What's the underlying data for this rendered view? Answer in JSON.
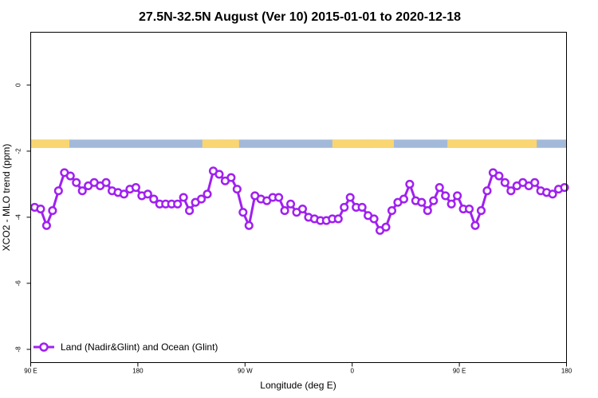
{
  "chart_data": {
    "type": "line",
    "title": "27.5N-32.5N August (Ver 10)   2015-01-01 to 2020-12-18",
    "xlabel": "Longitude (deg E)",
    "ylabel": "XCO2 - MLO trend (ppm)",
    "xlim": [
      -90,
      180
    ],
    "ylim": [
      -8.4,
      1.6
    ],
    "x_ticks": [
      {
        "value": -90,
        "label": "90 E"
      },
      {
        "value": -36,
        "label": "180"
      },
      {
        "value": 18,
        "label": "90 W"
      },
      {
        "value": 72,
        "label": "0"
      },
      {
        "value": 126,
        "label": "90 E"
      },
      {
        "value": 180,
        "label": "180"
      }
    ],
    "y_ticks": [
      0,
      -2,
      -4,
      -6,
      -8
    ],
    "grid": false,
    "legend": {
      "placement": "bottom-left",
      "entries": [
        "Land (Nadir&Glint) and Ocean (Glint)"
      ]
    },
    "colors": {
      "series": "#a020f0",
      "land": "#f9d671",
      "ocean": "#a3b9d9"
    },
    "land_ocean_strip": {
      "y_range": [
        -1.9,
        -1.65
      ],
      "land_segments": [
        [
          -90,
          -70.5
        ],
        [
          -3.5,
          15
        ],
        [
          4,
          8
        ],
        [
          62,
          93
        ],
        [
          79,
          81
        ],
        [
          120,
          165
        ]
      ]
    },
    "series": [
      {
        "name": "Land (Nadir&Glint) and Ocean (Glint)",
        "x": [
          -88,
          -85,
          -82,
          -79,
          -76,
          -73,
          -70,
          -67,
          -64,
          -61,
          -58,
          -55,
          -52,
          -49,
          -46,
          -43,
          -40,
          -37,
          -34,
          -31,
          -28,
          -25,
          -22,
          -19,
          -16,
          -13,
          -10,
          -7,
          -4,
          -1,
          2,
          5,
          8,
          11,
          14,
          17,
          20,
          23,
          26,
          29,
          32,
          35,
          38,
          41,
          44,
          47,
          50,
          53,
          56,
          59,
          62,
          65,
          68,
          71,
          74,
          77,
          80,
          83,
          86,
          89,
          92,
          95,
          98,
          101,
          104,
          107,
          110,
          113,
          116,
          119,
          122,
          125,
          128,
          131,
          134,
          137,
          140,
          143,
          146,
          149,
          152,
          155,
          158,
          161,
          164,
          167,
          170,
          173,
          176,
          179
        ],
        "values": [
          -3.7,
          -3.75,
          -4.25,
          -3.8,
          -3.2,
          -2.65,
          -2.75,
          -2.95,
          -3.2,
          -3.05,
          -2.95,
          -3.05,
          -2.95,
          -3.2,
          -3.25,
          -3.3,
          -3.15,
          -3.1,
          -3.35,
          -3.3,
          -3.45,
          -3.6,
          -3.6,
          -3.6,
          -3.6,
          -3.4,
          -3.8,
          -3.55,
          -3.45,
          -3.3,
          -2.6,
          -2.7,
          -2.9,
          -2.8,
          -3.15,
          -3.85,
          -4.25,
          -3.35,
          -3.45,
          -3.5,
          -3.4,
          -3.4,
          -3.8,
          -3.6,
          -3.85,
          -3.75,
          -4.0,
          -4.05,
          -4.1,
          -4.1,
          -4.05,
          -4.05,
          -3.7,
          -3.4,
          -3.7,
          -3.7,
          -3.95,
          -4.05,
          -4.4,
          -4.3,
          -3.8,
          -3.55,
          -3.45,
          -3.0,
          -3.5,
          -3.55,
          -3.8,
          -3.5,
          -3.1,
          -3.35,
          -3.6,
          -3.35,
          -3.75,
          -3.75,
          -4.25,
          -3.8,
          -3.2,
          -2.65,
          -2.75,
          -2.95,
          -3.2,
          -3.05,
          -2.95,
          -3.05,
          -2.95,
          -3.2,
          -3.25,
          -3.3,
          -3.15,
          -3.1
        ]
      }
    ]
  }
}
